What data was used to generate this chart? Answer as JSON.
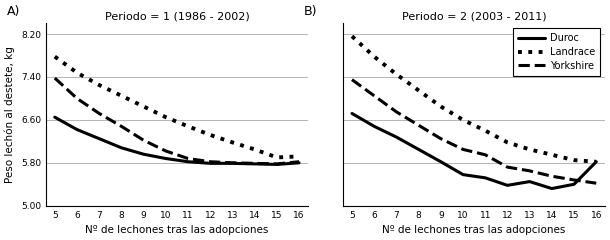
{
  "x": [
    5,
    6,
    7,
    8,
    9,
    10,
    11,
    12,
    13,
    14,
    15,
    16
  ],
  "panel_A": {
    "title": "Periodo = 1 (1986 - 2002)",
    "Duroc": [
      6.65,
      6.42,
      6.25,
      6.08,
      5.96,
      5.88,
      5.82,
      5.79,
      5.79,
      5.78,
      5.77,
      5.8
    ],
    "Landrace": [
      7.78,
      7.48,
      7.25,
      7.05,
      6.85,
      6.65,
      6.48,
      6.32,
      6.18,
      6.05,
      5.9,
      5.92
    ],
    "Yorkshire": [
      7.38,
      7.0,
      6.72,
      6.48,
      6.22,
      6.02,
      5.88,
      5.82,
      5.8,
      5.79,
      5.78,
      5.82
    ]
  },
  "panel_B": {
    "title": "Periodo = 2 (2003 - 2011)",
    "Duroc": [
      6.72,
      6.48,
      6.28,
      6.05,
      5.82,
      5.58,
      5.52,
      5.38,
      5.45,
      5.32,
      5.4,
      5.82
    ],
    "Landrace": [
      8.16,
      7.78,
      7.45,
      7.15,
      6.85,
      6.6,
      6.4,
      6.18,
      6.05,
      5.95,
      5.85,
      5.82
    ],
    "Yorkshire": [
      7.35,
      7.05,
      6.75,
      6.5,
      6.25,
      6.05,
      5.95,
      5.72,
      5.65,
      5.55,
      5.48,
      5.42
    ]
  },
  "ylabel": "Peso lechón al destete, kg",
  "xlabel": "Nº de lechones tras las adopciones",
  "ylim": [
    5.0,
    8.4
  ],
  "yticks": [
    5.0,
    5.8,
    6.6,
    7.4,
    8.2
  ],
  "ytick_labels": [
    "5.00",
    "5.80",
    "6.60",
    "7.40",
    "8.20"
  ],
  "line_styles": {
    "Duroc": {
      "linestyle": "-",
      "linewidth": 2.2,
      "color": "black"
    },
    "Landrace": {
      "linestyle": ":",
      "linewidth": 2.8,
      "color": "black"
    },
    "Yorkshire": {
      "linestyle": "--",
      "linewidth": 2.2,
      "color": "black"
    }
  },
  "legend_labels": [
    "Duroc",
    "Landrace",
    "Yorkshire"
  ],
  "panel_labels": [
    "A)",
    "B)"
  ]
}
